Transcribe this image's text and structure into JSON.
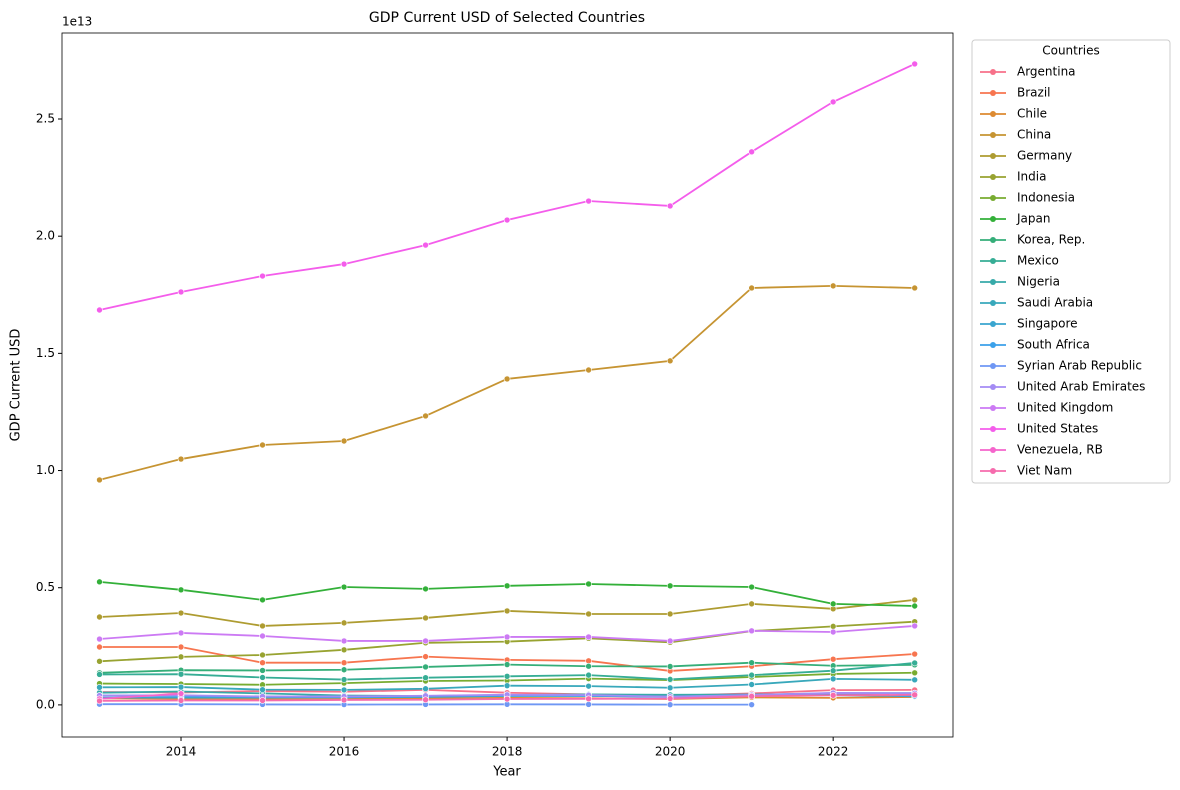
{
  "chart_data": {
    "type": "line",
    "title": "GDP Current USD of Selected Countries",
    "x_label": "Year",
    "y_label": "GDP Current USD",
    "y_offset_label": "1e13",
    "legend_title": "Countries",
    "legend_position": "outside right",
    "x": [
      2013,
      2014,
      2015,
      2016,
      2017,
      2018,
      2019,
      2020,
      2021,
      2022,
      2023
    ],
    "xlim": [
      2012.54,
      2023.47
    ],
    "xticks": [
      2014,
      2016,
      2018,
      2020,
      2022
    ],
    "ylim": [
      -1370000000000.0,
      28670000000000.0
    ],
    "yticks": [
      {
        "value": 0,
        "label": "0.0"
      },
      {
        "value": 5000000000000.0,
        "label": "0.5"
      },
      {
        "value": 10000000000000.0,
        "label": "1.0"
      },
      {
        "value": 15000000000000.0,
        "label": "1.5"
      },
      {
        "value": 20000000000000.0,
        "label": "2.0"
      },
      {
        "value": 25000000000000.0,
        "label": "2.5"
      }
    ],
    "series": [
      {
        "name": "Argentina",
        "color": "#f77189",
        "values": [
          550000000000.0,
          530000000000.0,
          590000000000.0,
          560000000000.0,
          640000000000.0,
          520000000000.0,
          450000000000.0,
          390000000000.0,
          490000000000.0,
          630000000000.0,
          640000000000.0
        ]
      },
      {
        "name": "Brazil",
        "color": "#f7754f",
        "values": [
          2470000000000.0,
          2470000000000.0,
          1800000000000.0,
          1800000000000.0,
          2060000000000.0,
          1920000000000.0,
          1880000000000.0,
          1450000000000.0,
          1650000000000.0,
          1950000000000.0,
          2170000000000.0
        ]
      },
      {
        "name": "Chile",
        "color": "#dd8a31",
        "values": [
          280000000000.0,
          260000000000.0,
          240000000000.0,
          250000000000.0,
          280000000000.0,
          300000000000.0,
          280000000000.0,
          250000000000.0,
          320000000000.0,
          300000000000.0,
          340000000000.0
        ]
      },
      {
        "name": "China",
        "color": "#c69432",
        "values": [
          9600000000000.0,
          10490000000000.0,
          11090000000000.0,
          11260000000000.0,
          12330000000000.0,
          13910000000000.0,
          14290000000000.0,
          14680000000000.0,
          17790000000000.0,
          17880000000000.0,
          17790000000000.0
        ]
      },
      {
        "name": "Germany",
        "color": "#ae9c31",
        "values": [
          3750000000000.0,
          3920000000000.0,
          3370000000000.0,
          3500000000000.0,
          3710000000000.0,
          4010000000000.0,
          3880000000000.0,
          3880000000000.0,
          4310000000000.0,
          4100000000000.0,
          4480000000000.0
        ]
      },
      {
        "name": "India",
        "color": "#98a331",
        "values": [
          1860000000000.0,
          2050000000000.0,
          2130000000000.0,
          2350000000000.0,
          2650000000000.0,
          2700000000000.0,
          2840000000000.0,
          2670000000000.0,
          3150000000000.0,
          3350000000000.0,
          3550000000000.0
        ]
      },
      {
        "name": "Indonesia",
        "color": "#78ac31",
        "values": [
          910000000000.0,
          890000000000.0,
          860000000000.0,
          930000000000.0,
          1020000000000.0,
          1040000000000.0,
          1120000000000.0,
          1060000000000.0,
          1190000000000.0,
          1320000000000.0,
          1370000000000.0
        ]
      },
      {
        "name": "Japan",
        "color": "#33b039",
        "values": [
          5250000000000.0,
          4910000000000.0,
          4480000000000.0,
          5030000000000.0,
          4950000000000.0,
          5080000000000.0,
          5160000000000.0,
          5080000000000.0,
          5030000000000.0,
          4310000000000.0,
          4220000000000.0
        ]
      },
      {
        "name": "Korea, Rep.",
        "color": "#35ae79",
        "values": [
          1370000000000.0,
          1480000000000.0,
          1470000000000.0,
          1500000000000.0,
          1620000000000.0,
          1720000000000.0,
          1650000000000.0,
          1640000000000.0,
          1800000000000.0,
          1670000000000.0,
          1710000000000.0
        ]
      },
      {
        "name": "Mexico",
        "color": "#36ad95",
        "values": [
          1300000000000.0,
          1310000000000.0,
          1170000000000.0,
          1080000000000.0,
          1160000000000.0,
          1220000000000.0,
          1270000000000.0,
          1090000000000.0,
          1270000000000.0,
          1460000000000.0,
          1790000000000.0
        ]
      },
      {
        "name": "Nigeria",
        "color": "#37aaa9",
        "values": [
          520000000000.0,
          570000000000.0,
          490000000000.0,
          400000000000.0,
          380000000000.0,
          420000000000.0,
          450000000000.0,
          430000000000.0,
          440000000000.0,
          480000000000.0,
          360000000000.0
        ]
      },
      {
        "name": "Saudi Arabia",
        "color": "#38a8bb",
        "values": [
          750000000000.0,
          760000000000.0,
          650000000000.0,
          640000000000.0,
          690000000000.0,
          820000000000.0,
          800000000000.0,
          730000000000.0,
          870000000000.0,
          1110000000000.0,
          1070000000000.0
        ]
      },
      {
        "name": "Singapore",
        "color": "#39a5cf",
        "values": [
          310000000000.0,
          310000000000.0,
          310000000000.0,
          320000000000.0,
          340000000000.0,
          380000000000.0,
          380000000000.0,
          350000000000.0,
          420000000000.0,
          500000000000.0,
          500000000000.0
        ]
      },
      {
        "name": "South Africa",
        "color": "#3ba1ea",
        "values": [
          400000000000.0,
          380000000000.0,
          350000000000.0,
          320000000000.0,
          380000000000.0,
          400000000000.0,
          390000000000.0,
          340000000000.0,
          420000000000.0,
          410000000000.0,
          380000000000.0
        ]
      },
      {
        "name": "Syrian Arab Republic",
        "color": "#6f97f4",
        "values": [
          30000000000.0,
          30000000000.0,
          20000000000.0,
          15000000000.0,
          20000000000.0,
          25000000000.0,
          20000000000.0,
          10000000000.0,
          10000000000.0,
          null,
          null
        ]
      },
      {
        "name": "United Arab Emirates",
        "color": "#a48cf4",
        "values": [
          400000000000.0,
          410000000000.0,
          360000000000.0,
          360000000000.0,
          390000000000.0,
          430000000000.0,
          420000000000.0,
          350000000000.0,
          420000000000.0,
          510000000000.0,
          500000000000.0
        ]
      },
      {
        "name": "United Kingdom",
        "color": "#cc7af4",
        "values": [
          2810000000000.0,
          3070000000000.0,
          2940000000000.0,
          2730000000000.0,
          2730000000000.0,
          2900000000000.0,
          2900000000000.0,
          2730000000000.0,
          3160000000000.0,
          3110000000000.0,
          3370000000000.0
        ]
      },
      {
        "name": "United States",
        "color": "#f45deb",
        "values": [
          16850000000000.0,
          17620000000000.0,
          18300000000000.0,
          18810000000000.0,
          19620000000000.0,
          20690000000000.0,
          21500000000000.0,
          21290000000000.0,
          23600000000000.0,
          25730000000000.0,
          27350000000000.0
        ]
      },
      {
        "name": "Venezuela, RB",
        "color": "#f565cc",
        "values": [
          260000000000.0,
          480000000000.0,
          null,
          null,
          null,
          null,
          null,
          null,
          null,
          null,
          null
        ]
      },
      {
        "name": "Viet Nam",
        "color": "#f66bad",
        "values": [
          170000000000.0,
          190000000000.0,
          190000000000.0,
          210000000000.0,
          220000000000.0,
          250000000000.0,
          260000000000.0,
          270000000000.0,
          370000000000.0,
          410000000000.0,
          430000000000.0
        ]
      }
    ]
  }
}
